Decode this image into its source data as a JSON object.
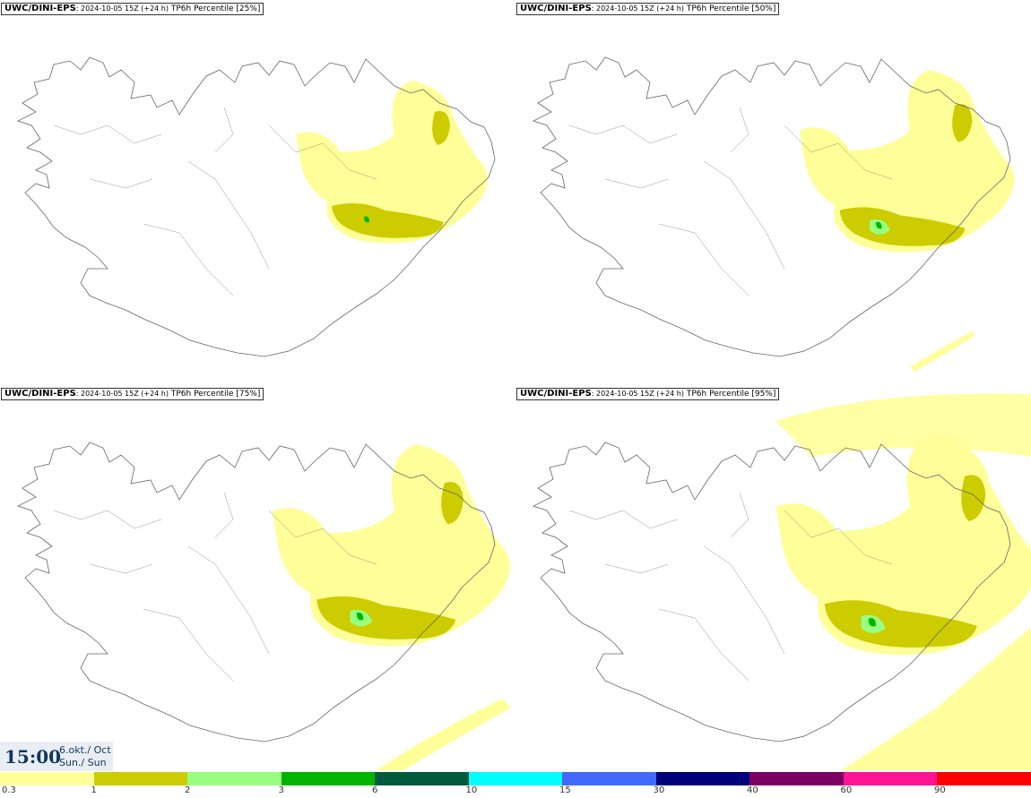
{
  "panels": [
    {
      "model": "UWC/DINI-EPS",
      "run": ": 2024-10-05 15Z (+24 h)",
      "title": "TP6h Percentile [25%]",
      "intensity": 1
    },
    {
      "model": "UWC/DINI-EPS",
      "run": ": 2024-10-05 15Z (+24 h)",
      "title": "TP6h Percentile [50%]",
      "intensity": 2
    },
    {
      "model": "UWC/DINI-EPS",
      "run": ": 2024-10-05 15Z (+24 h)",
      "title": "TP6h Percentile [75%]",
      "intensity": 3
    },
    {
      "model": "UWC/DINI-EPS",
      "run": ": 2024-10-05 15Z (+24 h)",
      "title": "TP6h Percentile [95%]",
      "intensity": 4
    }
  ],
  "time": {
    "clock": "15:00",
    "date_line1": "6.okt./ Oct",
    "date_line2": "Sun./ Sun"
  },
  "legend": {
    "ticks": [
      "0.3",
      "1",
      "2",
      "3",
      "6",
      "10",
      "15",
      "30",
      "40",
      "60",
      "90"
    ],
    "colors": [
      "#ffff99",
      "#cccc00",
      "#99ff80",
      "#00b400",
      "#005a3c",
      "#00ffff",
      "#4169ff",
      "#00007d",
      "#7d0064",
      "#ff1493",
      "#ff0000"
    ]
  },
  "map_colors": {
    "land_outline": "#666666",
    "precip_light": "#ffff99",
    "precip_mid": "#cccc00",
    "precip_high": "#99ff80",
    "precip_max": "#00b400"
  }
}
